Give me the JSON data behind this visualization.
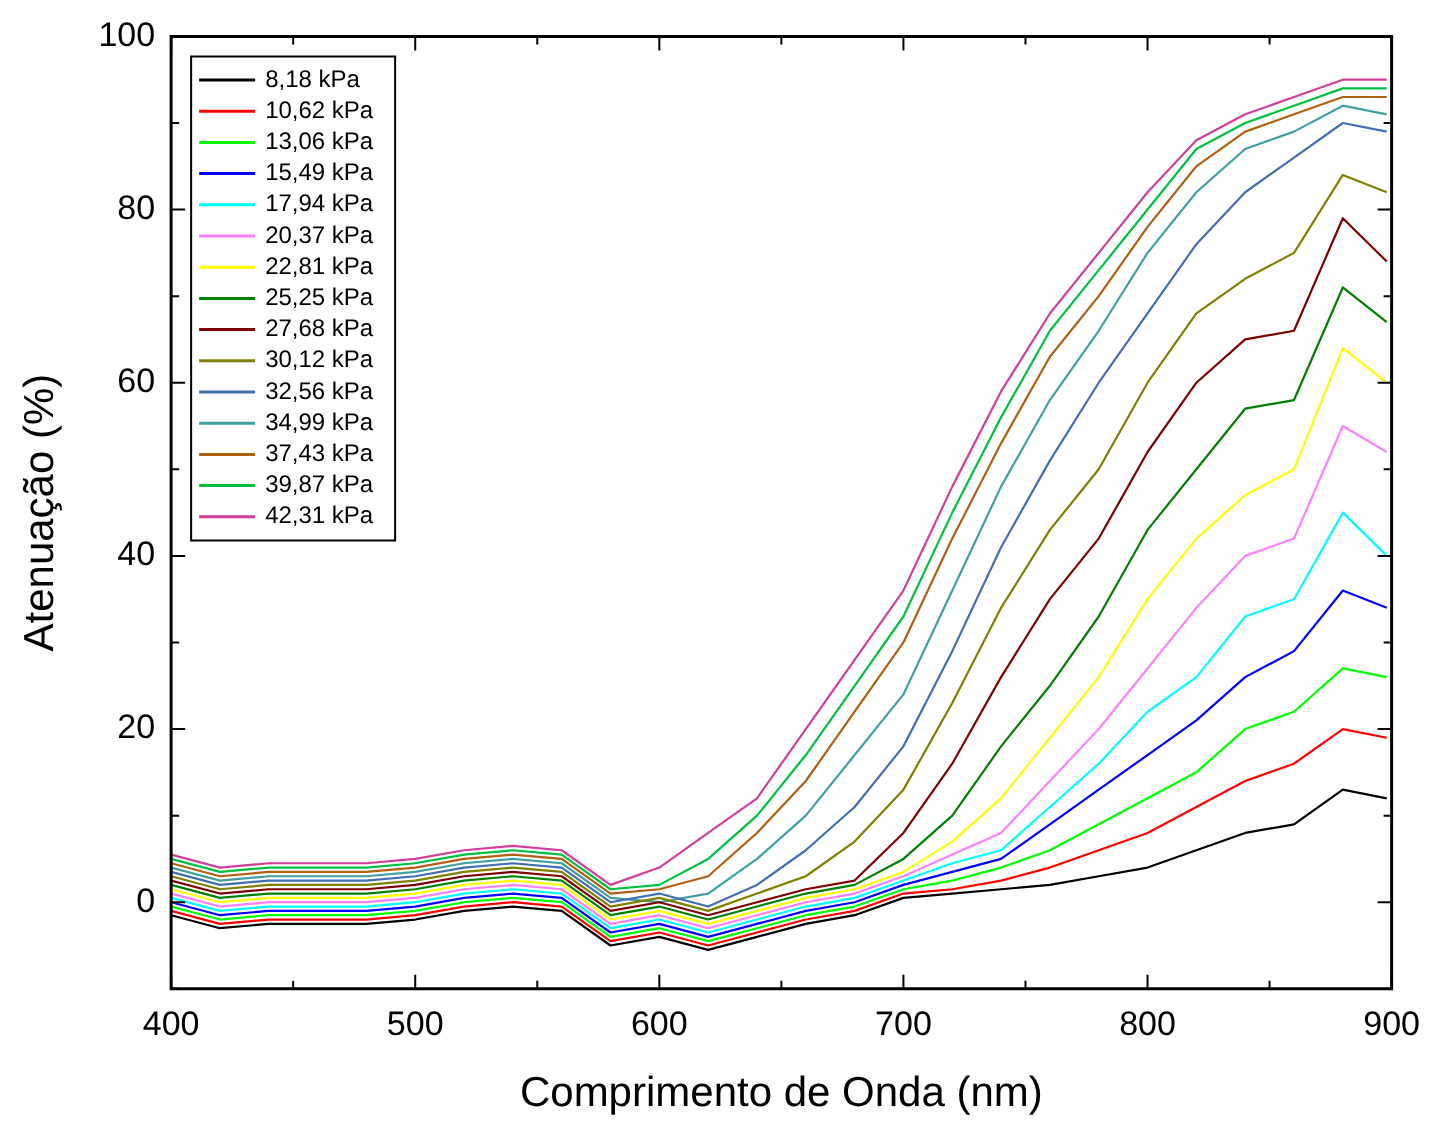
{
  "chart_data": {
    "type": "line",
    "xlabel": "Comprimento de Onda (nm)",
    "ylabel": "Atenuação (%)",
    "x": [
      400,
      420,
      440,
      460,
      480,
      500,
      520,
      540,
      560,
      580,
      600,
      620,
      640,
      660,
      680,
      700,
      720,
      740,
      760,
      780,
      800,
      820,
      840,
      860,
      880,
      898
    ],
    "xlim": [
      400,
      900
    ],
    "xticks": [
      400,
      500,
      600,
      700,
      800,
      900
    ],
    "ylim": [
      -10,
      100
    ],
    "yticks": [
      0,
      20,
      40,
      60,
      80,
      100
    ],
    "grid": false,
    "legend": "top left",
    "marker": "none",
    "line_style": "solid",
    "series": [
      {
        "name": "8,18 kPa",
        "color": "#000000",
        "values": [
          -1.5,
          -3,
          -2.5,
          -2.5,
          -2.5,
          -2,
          -1,
          -0.5,
          -1,
          -5,
          -4,
          -5.5,
          -4,
          -2.5,
          -1.5,
          0.5,
          1,
          1.5,
          2,
          3,
          4,
          6,
          8,
          9,
          13,
          12
        ]
      },
      {
        "name": "10,62 kPa",
        "color": "#ff0000",
        "values": [
          -1,
          -2.5,
          -2,
          -2,
          -2,
          -1.5,
          -0.5,
          0,
          -0.5,
          -4.5,
          -3.5,
          -5,
          -3.5,
          -2,
          -1,
          1,
          1.5,
          2.5,
          4,
          6,
          8,
          11,
          14,
          16,
          20,
          19
        ]
      },
      {
        "name": "13,06 kPa",
        "color": "#00ff00",
        "values": [
          -0.5,
          -2,
          -1.5,
          -1.5,
          -1.5,
          -1,
          0,
          0.5,
          0,
          -4,
          -3,
          -4.5,
          -3,
          -1.5,
          -0.5,
          1.5,
          2.5,
          4,
          6,
          9,
          12,
          15,
          20,
          22,
          27,
          26
        ]
      },
      {
        "name": "15,49 kPa",
        "color": "#0000ff",
        "values": [
          0,
          -1.5,
          -1,
          -1,
          -1,
          -0.5,
          0.5,
          1,
          0.5,
          -3.5,
          -2.5,
          -4,
          -2.5,
          -1,
          0,
          2,
          3.5,
          5,
          9,
          13,
          17,
          21,
          26,
          29,
          36,
          34
        ]
      },
      {
        "name": "17,94 kPa",
        "color": "#00ffff",
        "values": [
          0.5,
          -1,
          -0.5,
          -0.5,
          -0.5,
          0,
          1,
          1.5,
          1,
          -3,
          -2,
          -3.5,
          -2,
          -0.5,
          0.5,
          2.5,
          4.5,
          6,
          11,
          16,
          22,
          26,
          33,
          35,
          45,
          40
        ]
      },
      {
        "name": "20,37 kPa",
        "color": "#ff80ff",
        "values": [
          1,
          -0.5,
          0,
          0,
          0,
          0.5,
          1.5,
          2,
          1.5,
          -2.5,
          -1.5,
          -3,
          -1.5,
          0,
          1,
          3,
          5.5,
          8,
          14,
          20,
          27,
          34,
          40,
          42,
          55,
          52
        ]
      },
      {
        "name": "22,81 kPa",
        "color": "#ffff00",
        "values": [
          1.5,
          0,
          0.5,
          0.5,
          0.5,
          1,
          2,
          2.5,
          2,
          -2,
          -1,
          -2.5,
          -1,
          0.5,
          1.5,
          3.5,
          7,
          12,
          19,
          26,
          35,
          42,
          47,
          50,
          64,
          60
        ]
      },
      {
        "name": "25,25 kPa",
        "color": "#008000",
        "values": [
          2,
          0.5,
          1,
          1,
          1,
          1.5,
          2.5,
          3,
          2.5,
          -1.5,
          -0.5,
          -2,
          -0.5,
          1,
          2,
          5,
          10,
          18,
          25,
          33,
          43,
          50,
          57,
          58,
          71,
          67
        ]
      },
      {
        "name": "27,68 kPa",
        "color": "#800000",
        "values": [
          2.5,
          1,
          1.5,
          1.5,
          1.5,
          2,
          3,
          3.5,
          3,
          -1,
          0,
          -1.5,
          0,
          1.5,
          2.5,
          8,
          16,
          26,
          35,
          42,
          52,
          60,
          65,
          66,
          79,
          74
        ]
      },
      {
        "name": "30,12 kPa",
        "color": "#808000",
        "values": [
          3,
          1.5,
          2,
          2,
          2,
          2.5,
          3.5,
          4,
          3.5,
          -0.5,
          0.5,
          -1,
          1,
          3,
          7,
          13,
          23,
          34,
          43,
          50,
          60,
          68,
          72,
          75,
          84,
          82
        ]
      },
      {
        "name": "32,56 kPa",
        "color": "#4070b0",
        "values": [
          3.5,
          2,
          2.5,
          2.5,
          2.5,
          3,
          4,
          4.5,
          4,
          0,
          1,
          -0.5,
          2,
          6,
          11,
          18,
          29,
          41,
          51,
          60,
          68,
          76,
          82,
          86,
          90,
          89
        ]
      },
      {
        "name": "34,99 kPa",
        "color": "#40a0a0",
        "values": [
          4,
          2.5,
          3,
          3,
          3,
          3.5,
          4.5,
          5,
          4.5,
          0.5,
          0,
          1,
          5,
          10,
          17,
          24,
          36,
          48,
          58,
          66,
          75,
          82,
          87,
          89,
          92,
          91
        ]
      },
      {
        "name": "37,43 kPa",
        "color": "#b06010",
        "values": [
          4.5,
          3,
          3.5,
          3.5,
          3.5,
          4,
          5,
          5.5,
          5,
          1,
          1.5,
          3,
          8,
          14,
          22,
          30,
          42,
          53,
          63,
          70,
          78,
          85,
          89,
          91,
          93,
          93
        ]
      },
      {
        "name": "39,87 kPa",
        "color": "#00c040",
        "values": [
          5,
          3.5,
          4,
          4,
          4,
          4.5,
          5.5,
          6,
          5.5,
          1.5,
          2,
          5,
          10,
          17,
          25,
          33,
          45,
          56,
          66,
          73,
          80,
          87,
          90,
          92,
          94,
          94
        ]
      },
      {
        "name": "42,31 kPa",
        "color": "#d0409a",
        "values": [
          5.5,
          4,
          4.5,
          4.5,
          4.5,
          5,
          6,
          6.5,
          6,
          2,
          4,
          8,
          12,
          20,
          28,
          36,
          48,
          59,
          68,
          75,
          82,
          88,
          91,
          93,
          95,
          95
        ]
      }
    ]
  }
}
